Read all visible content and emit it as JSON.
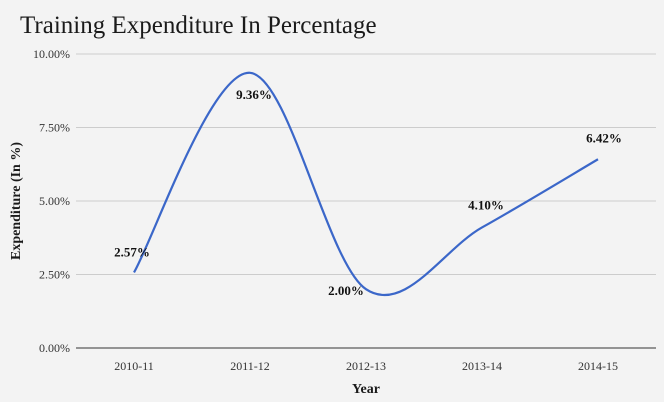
{
  "chart_data": {
    "type": "line",
    "title": "Training Expenditure In Percentage",
    "xlabel": "Year",
    "ylabel": "Expenditure (In %)",
    "categories": [
      "2010-11",
      "2011-12",
      "2012-13",
      "2013-14",
      "2014-15"
    ],
    "values": [
      2.57,
      9.36,
      2.0,
      4.1,
      6.42
    ],
    "value_labels": [
      "2.57%",
      "9.36%",
      "2.00%",
      "4.10%",
      "6.42%"
    ],
    "yticks": [
      0,
      2.5,
      5,
      7.5,
      10
    ],
    "ytick_labels": [
      "0.00%",
      "2.50%",
      "5.00%",
      "7.50%",
      "10.00%"
    ],
    "ylim": [
      0,
      10
    ],
    "grid": true,
    "smooth": true,
    "legend": "none",
    "colors": {
      "line": "#3b67c9",
      "grid": "#cccccc",
      "axis": "#333333",
      "background": "#f3f3f3"
    }
  }
}
